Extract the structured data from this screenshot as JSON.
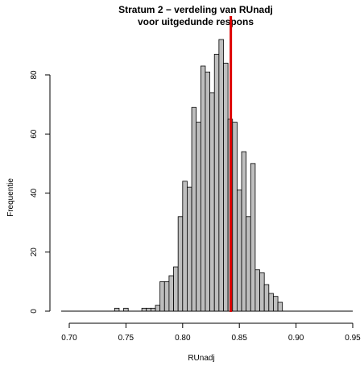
{
  "chart_data": {
    "type": "bar",
    "title": "Stratum 2 − verdeling van RUnadj",
    "subtitle": "voor uitgedunde respons",
    "xlabel": "RUnadj",
    "ylabel": "Frequentie",
    "xlim": [
      0.7,
      0.95
    ],
    "ylim": [
      0,
      92
    ],
    "x_ticks": [
      "0.70",
      "0.75",
      "0.80",
      "0.85",
      "0.90",
      "0.95"
    ],
    "y_ticks": [
      "0",
      "20",
      "40",
      "60",
      "80"
    ],
    "bin_width": 0.004,
    "bins": [
      {
        "start": 0.74,
        "count": 1
      },
      {
        "start": 0.748,
        "count": 1
      },
      {
        "start": 0.764,
        "count": 1
      },
      {
        "start": 0.768,
        "count": 1
      },
      {
        "start": 0.772,
        "count": 1
      },
      {
        "start": 0.776,
        "count": 2
      },
      {
        "start": 0.78,
        "count": 10
      },
      {
        "start": 0.784,
        "count": 10
      },
      {
        "start": 0.788,
        "count": 12
      },
      {
        "start": 0.792,
        "count": 15
      },
      {
        "start": 0.796,
        "count": 32
      },
      {
        "start": 0.8,
        "count": 44
      },
      {
        "start": 0.804,
        "count": 42
      },
      {
        "start": 0.808,
        "count": 69
      },
      {
        "start": 0.812,
        "count": 64
      },
      {
        "start": 0.816,
        "count": 83
      },
      {
        "start": 0.82,
        "count": 81
      },
      {
        "start": 0.824,
        "count": 74
      },
      {
        "start": 0.828,
        "count": 87
      },
      {
        "start": 0.832,
        "count": 92
      },
      {
        "start": 0.836,
        "count": 84
      },
      {
        "start": 0.84,
        "count": 65
      },
      {
        "start": 0.844,
        "count": 64
      },
      {
        "start": 0.848,
        "count": 41
      },
      {
        "start": 0.852,
        "count": 54
      },
      {
        "start": 0.856,
        "count": 32
      },
      {
        "start": 0.86,
        "count": 50
      },
      {
        "start": 0.864,
        "count": 14
      },
      {
        "start": 0.868,
        "count": 13
      },
      {
        "start": 0.872,
        "count": 9
      },
      {
        "start": 0.876,
        "count": 6
      },
      {
        "start": 0.88,
        "count": 5
      },
      {
        "start": 0.884,
        "count": 3
      }
    ],
    "reference_line": {
      "x": 0.8425,
      "color": "#dd0000"
    },
    "bar_fill": "#bebebe",
    "bar_stroke": "#000000",
    "grid": false,
    "legend": "none"
  }
}
